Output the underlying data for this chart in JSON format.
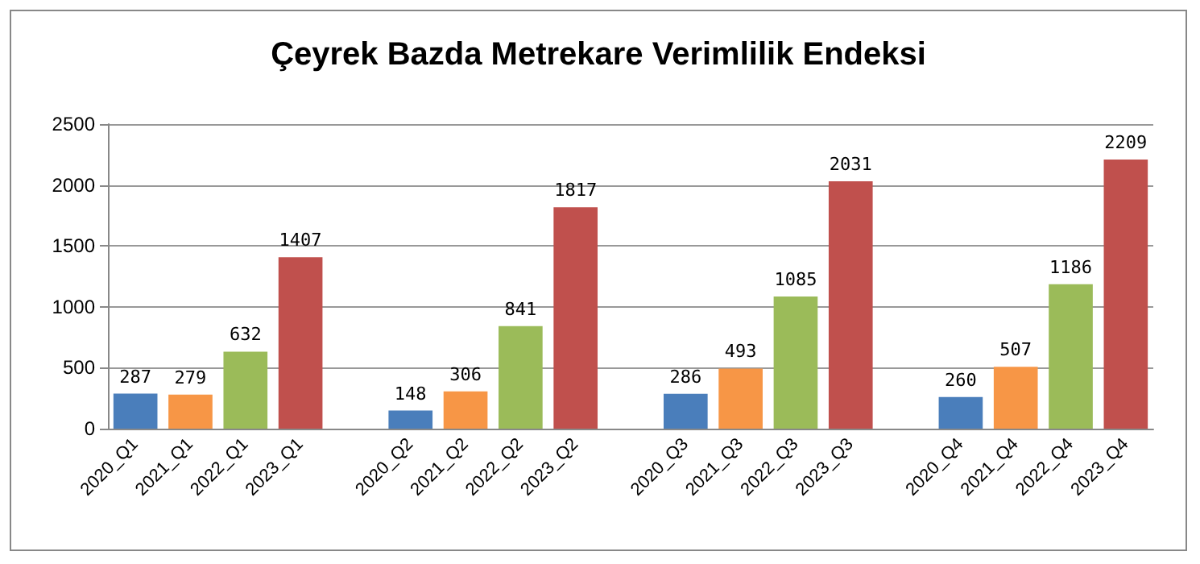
{
  "chart_data": {
    "type": "bar",
    "title": "Çeyrek Bazda Metrekare Verimlilik Endeksi",
    "categories": [
      "2020_Q1",
      "2021_Q1",
      "2022_Q1",
      "2023_Q1",
      null,
      "2020_Q2",
      "2021_Q2",
      "2022_Q2",
      "2023_Q2",
      null,
      "2020_Q3",
      "2021_Q3",
      "2022_Q3",
      "2023_Q3",
      null,
      "2020_Q4",
      "2021_Q4",
      "2022_Q4",
      "2023_Q4"
    ],
    "values": [
      287,
      279,
      632,
      1407,
      null,
      148,
      306,
      841,
      1817,
      null,
      286,
      493,
      1085,
      2031,
      null,
      260,
      507,
      1186,
      2209
    ],
    "colors": [
      "#4a7ebb",
      "#f79646",
      "#9bbb59",
      "#c0504d",
      null,
      "#4a7ebb",
      "#f79646",
      "#9bbb59",
      "#c0504d",
      null,
      "#4a7ebb",
      "#f79646",
      "#9bbb59",
      "#c0504d",
      null,
      "#4a7ebb",
      "#f79646",
      "#9bbb59",
      "#c0504d"
    ],
    "ylim": [
      0,
      2500
    ],
    "yticks": [
      0,
      500,
      1000,
      1500,
      2000,
      2500
    ],
    "grid": "y",
    "data_labels": true
  }
}
